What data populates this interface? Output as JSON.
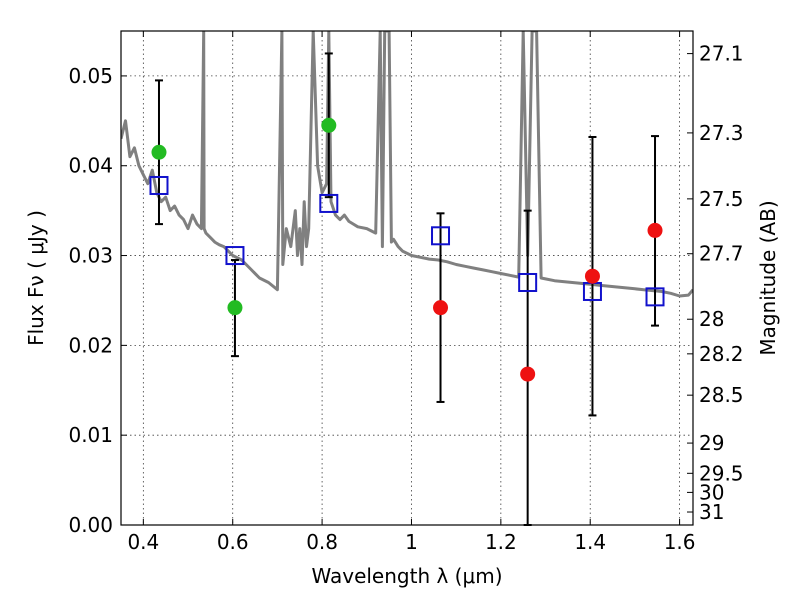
{
  "chart_data": {
    "type": "scatter",
    "xlabel": "Wavelength  λ (μm)",
    "ylabel": "Flux  Fν  ( μJy )",
    "ylabel_right": "Magnitude (AB)",
    "xlim": [
      0.35,
      1.63
    ],
    "ylim": [
      0.0,
      0.055
    ],
    "x_ticks": [
      0.4,
      0.6,
      0.8,
      1.0,
      1.2,
      1.4,
      1.6
    ],
    "x_tick_labels": [
      "0.4",
      "0.6",
      "0.8",
      "1",
      "1.2",
      "1.4",
      "1.6"
    ],
    "y_ticks": [
      0.0,
      0.01,
      0.02,
      0.03,
      0.04,
      0.05
    ],
    "y_tick_labels": [
      "0.00",
      "0.01",
      "0.02",
      "0.03",
      "0.04",
      "0.05"
    ],
    "right_ticks": [
      {
        "label": "27.1",
        "value": 27.1
      },
      {
        "label": "27.3",
        "value": 27.3
      },
      {
        "label": "27.5",
        "value": 27.5
      },
      {
        "label": "27.7",
        "value": 27.7
      },
      {
        "label": "28",
        "value": 28.0
      },
      {
        "label": "28.2",
        "value": 28.2
      },
      {
        "label": "28.5",
        "value": 28.5
      },
      {
        "label": "29",
        "value": 29.0
      },
      {
        "label": "29.5",
        "value": 29.5
      },
      {
        "label": "30",
        "value": 30.0
      },
      {
        "label": "31",
        "value": 31.0
      }
    ],
    "grid": true,
    "colors": {
      "model": "#808080",
      "detection": "#22bb22",
      "upper_limit": "#ee1111",
      "model_box": "#1111cc",
      "errorbar": "#000000"
    },
    "model_spectrum": {
      "x": [
        0.35,
        0.36,
        0.37,
        0.38,
        0.39,
        0.4,
        0.41,
        0.42,
        0.43,
        0.44,
        0.45,
        0.46,
        0.47,
        0.48,
        0.49,
        0.5,
        0.51,
        0.52,
        0.53,
        0.535,
        0.536,
        0.54,
        0.55,
        0.56,
        0.57,
        0.58,
        0.59,
        0.6,
        0.62,
        0.64,
        0.66,
        0.68,
        0.7,
        0.71,
        0.712,
        0.72,
        0.73,
        0.74,
        0.745,
        0.75,
        0.755,
        0.76,
        0.765,
        0.77,
        0.78,
        0.79,
        0.8,
        0.81,
        0.815,
        0.82,
        0.83,
        0.84,
        0.85,
        0.86,
        0.87,
        0.88,
        0.9,
        0.92,
        0.93,
        0.935,
        0.94,
        0.95,
        0.955,
        0.96,
        0.97,
        0.98,
        1.0,
        1.02,
        1.04,
        1.06,
        1.08,
        1.1,
        1.12,
        1.14,
        1.16,
        1.18,
        1.2,
        1.22,
        1.24,
        1.25,
        1.26,
        1.27,
        1.28,
        1.29,
        1.3,
        1.32,
        1.34,
        1.36,
        1.38,
        1.4,
        1.42,
        1.44,
        1.46,
        1.48,
        1.5,
        1.52,
        1.54,
        1.56,
        1.58,
        1.6,
        1.62,
        1.63
      ],
      "y": [
        0.043,
        0.045,
        0.041,
        0.042,
        0.04,
        0.039,
        0.038,
        0.0395,
        0.037,
        0.036,
        0.0365,
        0.035,
        0.0355,
        0.0345,
        0.034,
        0.033,
        0.0345,
        0.0335,
        0.033,
        0.055,
        0.033,
        0.0325,
        0.032,
        0.0315,
        0.0312,
        0.031,
        0.0305,
        0.03,
        0.0295,
        0.0285,
        0.0275,
        0.027,
        0.0262,
        0.055,
        0.029,
        0.033,
        0.031,
        0.035,
        0.03,
        0.033,
        0.029,
        0.036,
        0.031,
        0.033,
        0.055,
        0.04,
        0.037,
        0.038,
        0.055,
        0.036,
        0.0345,
        0.034,
        0.0345,
        0.0338,
        0.0335,
        0.0332,
        0.033,
        0.0325,
        0.055,
        0.031,
        0.055,
        0.055,
        0.0315,
        0.0318,
        0.031,
        0.0305,
        0.03,
        0.0298,
        0.0296,
        0.0295,
        0.0293,
        0.029,
        0.0288,
        0.0286,
        0.0284,
        0.0282,
        0.028,
        0.0278,
        0.0276,
        0.055,
        0.03,
        0.055,
        0.055,
        0.0275,
        0.0274,
        0.0272,
        0.0271,
        0.027,
        0.0269,
        0.0268,
        0.0267,
        0.0266,
        0.0265,
        0.0264,
        0.0263,
        0.0262,
        0.0261,
        0.026,
        0.0258,
        0.0255,
        0.0256,
        0.0262
      ]
    },
    "series": [
      {
        "marker": "circle",
        "color": "#22bb22",
        "points": [
          {
            "x": 0.435,
            "y": 0.0415,
            "yerr_low": 0.0335,
            "yerr_high": 0.0495
          },
          {
            "x": 0.605,
            "y": 0.0242,
            "yerr_low": 0.0188,
            "yerr_high": 0.0295
          },
          {
            "x": 0.815,
            "y": 0.0445,
            "yerr_low": 0.0365,
            "yerr_high": 0.0525
          }
        ]
      },
      {
        "marker": "circle",
        "color": "#ee1111",
        "points": [
          {
            "x": 1.065,
            "y": 0.0242,
            "yerr_low": 0.0137,
            "yerr_high": 0.0347
          },
          {
            "x": 1.26,
            "y": 0.0168,
            "yerr_low": 0.0,
            "yerr_high": 0.035
          },
          {
            "x": 1.405,
            "y": 0.0277,
            "yerr_low": 0.0122,
            "yerr_high": 0.0432
          },
          {
            "x": 1.545,
            "y": 0.0328,
            "yerr_low": 0.0222,
            "yerr_high": 0.0433
          }
        ]
      },
      {
        "marker": "square-open",
        "color": "#1111cc",
        "points": [
          {
            "x": 0.435,
            "y": 0.0378
          },
          {
            "x": 0.605,
            "y": 0.03
          },
          {
            "x": 0.815,
            "y": 0.0358
          },
          {
            "x": 1.065,
            "y": 0.0322
          },
          {
            "x": 1.26,
            "y": 0.027
          },
          {
            "x": 1.405,
            "y": 0.026
          },
          {
            "x": 1.545,
            "y": 0.0254
          }
        ]
      }
    ]
  }
}
